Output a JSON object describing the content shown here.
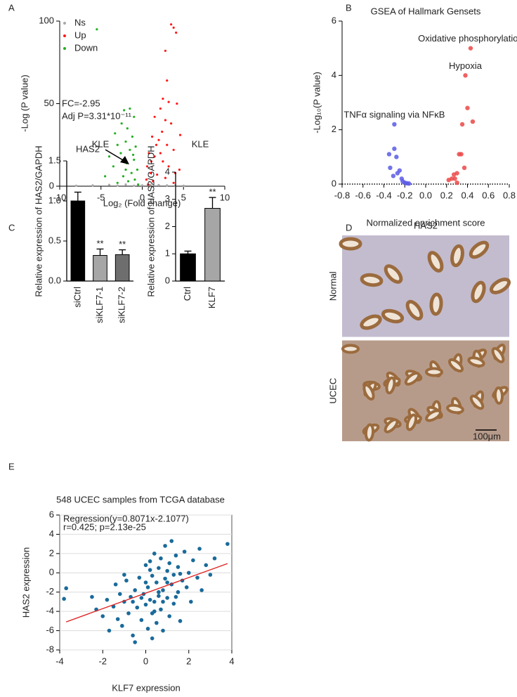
{
  "chart_data": [
    {
      "panel": "A",
      "type": "scatter",
      "xlabel": "Log₂ (Fold change)",
      "ylabel": "-Log (P value)",
      "xlim": [
        -10,
        10
      ],
      "ylim": [
        0,
        100
      ],
      "xticks": [
        -10,
        -5,
        0,
        5,
        10
      ],
      "yticks": [
        0,
        50,
        100
      ],
      "legend": "upper left",
      "series": [
        {
          "name": "Ns",
          "color": "#a9a9a9",
          "x": [
            -8,
            -6,
            -4,
            -3,
            -2,
            -1,
            0,
            1,
            2,
            3,
            4,
            5
          ],
          "y": [
            0.3,
            0.5,
            0.8,
            0.4,
            1,
            0.3,
            0.5,
            0.8,
            0.7,
            0.5,
            0.4,
            0.3
          ]
        },
        {
          "name": "Up",
          "color": "#ff1a1a",
          "x": [
            3.5,
            3.8,
            4.1,
            2.8,
            3.0,
            2.5,
            3.2,
            4.2,
            2.2,
            1.5,
            2.8,
            3.5,
            4.6,
            1.2,
            2.0,
            3.0,
            3.8,
            0.8,
            1.5,
            2.5,
            3.2,
            4.5,
            0.6,
            1.0,
            1.8,
            2.8,
            0.5,
            1.3,
            3.8,
            0.7,
            2.2,
            1.7,
            2.4,
            1.1,
            4.0
          ],
          "y": [
            98,
            96,
            93,
            82,
            64,
            53,
            51,
            50,
            47,
            42,
            40,
            38,
            31,
            30,
            28,
            25,
            22,
            20,
            18,
            15,
            12,
            10,
            12,
            8,
            7,
            5,
            4,
            3,
            2,
            1,
            20,
            25,
            33,
            15,
            8
          ]
        },
        {
          "name": "Down",
          "color": "#22b022",
          "x": [
            -5.5,
            -1.5,
            -2.2,
            -1.0,
            -2.5,
            -1.8,
            -3.3,
            -1.2,
            -2.0,
            -3.0,
            -0.8,
            -1.5,
            -2.6,
            -4.0,
            -1.0,
            -1.9,
            -3.5,
            -0.6,
            -1.3,
            -2.3,
            -0.9,
            -1.7,
            -3.0,
            -0.5,
            -1.1,
            -2.0,
            -4.5
          ],
          "y": [
            95,
            47,
            46,
            42,
            38,
            35,
            32,
            30,
            27,
            25,
            24,
            22,
            20,
            18,
            16,
            14,
            12,
            10,
            8,
            6,
            4,
            3,
            2,
            1,
            19,
            10,
            6
          ]
        }
      ],
      "annotations": [
        {
          "text": "FC=-2.95"
        },
        {
          "text": "Adj P=3.31*10⁻¹¹"
        },
        {
          "text": "HAS2"
        }
      ]
    },
    {
      "panel": "B",
      "type": "scatter",
      "title": "GSEA of Hallmark Gensets",
      "xlabel": "Normalized enrichment score",
      "ylabel": "-Log₁₀(P value)",
      "xlim": [
        -0.8,
        0.8
      ],
      "ylim": [
        0,
        6
      ],
      "xticks": [
        -0.8,
        -0.6,
        -0.4,
        -0.2,
        {
          "value": 0,
          "label": "0.0"
        },
        0.2,
        0.4,
        0.6,
        0.8
      ],
      "yticks": [
        0,
        2,
        4,
        6
      ],
      "x_axis_style": "dotted",
      "series": [
        {
          "color": "#5a5ae6",
          "x": [
            -0.3,
            -0.3,
            -0.35,
            -0.28,
            -0.34,
            -0.25,
            -0.27,
            -0.31,
            -0.23,
            -0.2,
            -0.18,
            -0.16,
            -0.22
          ],
          "y": [
            2.2,
            1.3,
            1.1,
            1.0,
            0.6,
            0.5,
            0.4,
            0.3,
            0.2,
            0.05,
            0.03,
            0.02,
            0.1
          ]
        },
        {
          "color": "#ec4646",
          "x": [
            0.43,
            0.38,
            0.4,
            0.45,
            0.35,
            0.32,
            0.34,
            0.37,
            0.3,
            0.27,
            0.25,
            0.28,
            0.22,
            0.3
          ],
          "y": [
            5.0,
            4.0,
            2.8,
            2.3,
            2.2,
            1.1,
            1.1,
            0.6,
            0.4,
            0.35,
            0.2,
            0.2,
            0.15,
            0.05
          ]
        }
      ],
      "point_labels": [
        {
          "text": "Oxidative phosphorylation",
          "x": 0.43,
          "y": 5.0
        },
        {
          "text": "Hypoxia",
          "x": 0.38,
          "y": 4.0
        },
        {
          "text": "TNFα signaling via NFκB",
          "x": -0.3,
          "y": 2.2
        }
      ]
    },
    {
      "panel": "C",
      "type": "bar",
      "title": "KLE",
      "ylabel": "Relative expression of HAS2/GAPDH",
      "categories": [
        "siCtrl",
        "siKLF7-1",
        "siKLF7-2"
      ],
      "values": [
        1.0,
        0.32,
        0.33
      ],
      "errors": [
        0.11,
        0.08,
        0.06
      ],
      "colors": [
        "#000000",
        "#a6a6a6",
        "#6e6e6e"
      ],
      "ylim": [
        0,
        1.5
      ],
      "yticks": [
        {
          "value": 0,
          "label": "0.0"
        },
        0.5,
        {
          "value": 1,
          "label": "1.0"
        },
        1.5
      ],
      "annotations": [
        {
          "category": "siKLF7-1",
          "text": "**"
        },
        {
          "category": "siKLF7-2",
          "text": "**"
        }
      ]
    },
    {
      "type": "bar",
      "title": "KLE",
      "ylabel": "Relative expression of HAS2/GAPDH",
      "categories": [
        "Ctrl",
        "KLF7"
      ],
      "values": [
        1.0,
        2.67
      ],
      "errors": [
        0.1,
        0.4
      ],
      "colors": [
        "#000000",
        "#a6a6a6"
      ],
      "ylim": [
        0,
        4
      ],
      "yticks": [
        0,
        1,
        2,
        3,
        4
      ],
      "annotations": [
        {
          "category": "KLF7",
          "text": "**"
        }
      ]
    },
    {
      "panel": "D",
      "type": "image",
      "title": "HAS2",
      "rows": [
        "Normal",
        "UCEC"
      ],
      "scale_bar": "100μm"
    },
    {
      "panel": "E",
      "type": "scatter",
      "title": "548 UCEC samples from TCGA database",
      "xlabel": "KLF7 expression",
      "ylabel": "HAS2 expression",
      "xlim": [
        -4,
        4
      ],
      "ylim": [
        -8,
        6
      ],
      "xticks": [
        -4,
        -2,
        0,
        2,
        4
      ],
      "yticks": [
        -8,
        -6,
        -4,
        -2,
        0,
        2,
        4,
        6
      ],
      "grid": true,
      "frame": true,
      "series": [
        {
          "color": "#1a6a9a",
          "x": [
            -3.8,
            -3.7,
            -2.5,
            -2.3,
            -2.0,
            -1.8,
            -1.7,
            -1.5,
            -1.4,
            -1.3,
            -1.2,
            -1.1,
            -1.0,
            -0.9,
            -0.8,
            -0.7,
            -0.6,
            -0.5,
            -0.4,
            -0.3,
            -0.2,
            -0.1,
            0.0,
            0.0,
            0.1,
            0.1,
            0.2,
            0.2,
            0.3,
            0.3,
            0.4,
            0.4,
            0.5,
            0.5,
            0.6,
            0.6,
            0.7,
            0.7,
            0.8,
            0.8,
            0.9,
            0.9,
            1.0,
            1.0,
            1.1,
            1.1,
            1.2,
            1.2,
            1.3,
            1.3,
            1.4,
            1.5,
            1.5,
            1.6,
            1.7,
            1.8,
            1.9,
            2.0,
            2.1,
            2.2,
            2.4,
            2.5,
            2.6,
            2.8,
            3.0,
            3.2,
            3.8,
            -0.5,
            0.3,
            -1.0,
            0.0,
            0.6,
            1.0,
            -0.2,
            0.4,
            0.8,
            1.4,
            -0.6,
            0.2,
            1.6
          ],
          "y": [
            -2.7,
            -1.6,
            -2.5,
            -3.8,
            -4.5,
            -2.8,
            -6.0,
            -3.5,
            -1.2,
            -4.8,
            -2.2,
            -5.5,
            -3.0,
            -0.8,
            -4.2,
            -2.5,
            -6.5,
            -1.8,
            -3.6,
            -0.5,
            -4.9,
            -2.2,
            -3.3,
            0.8,
            -5.8,
            -1.5,
            -2.8,
            1.2,
            -4.2,
            -0.3,
            -3.0,
            2.0,
            -1.0,
            -5.2,
            -2.4,
            0.5,
            -3.8,
            1.5,
            -1.8,
            -6.0,
            -0.6,
            2.8,
            -2.6,
            0.2,
            -4.5,
            1.0,
            -1.2,
            3.3,
            -3.2,
            -0.2,
            1.8,
            -2.0,
            0.6,
            -5.0,
            -0.8,
            2.2,
            -1.5,
            0.0,
            -3.0,
            1.3,
            -0.5,
            2.5,
            -1.8,
            0.8,
            -0.2,
            1.5,
            3.0,
            -7.2,
            -6.8,
            -0.2,
            -1.0,
            -2.0,
            -1.0,
            -2.6,
            -4.0,
            -3.0,
            -2.5,
            -3.0,
            0.3,
            -0.1
          ]
        }
      ],
      "fit_line": {
        "color": "#e02020",
        "x": [
          -3.7,
          3.8
        ],
        "y": [
          -5.09,
          0.96
        ]
      },
      "annotations": [
        {
          "text": "Regression(y=0.8071x-2.1077)"
        },
        {
          "text": "r=0.425; p=2.13e-25"
        }
      ]
    }
  ]
}
